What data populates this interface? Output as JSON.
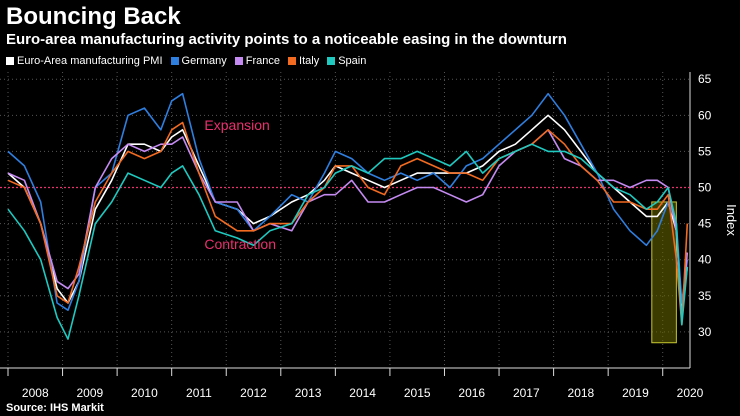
{
  "title": "Bouncing Back",
  "subtitle": "Euro-area manufacturing activity points to a noticeable easing in the downturn",
  "source": "Source: IHS Markit",
  "chart_data": {
    "type": "line",
    "ylabel": "Index",
    "ylim": [
      25,
      66
    ],
    "xlim": [
      2008.0,
      2020.5
    ],
    "yticks": [
      30,
      35,
      40,
      45,
      50,
      55,
      60,
      65
    ],
    "xticks": [
      "2008",
      "2009",
      "2010",
      "2011",
      "2012",
      "2013",
      "2014",
      "2015",
      "2016",
      "2017",
      "2018",
      "2019",
      "2020"
    ],
    "reference_line": 50,
    "annotations": [
      {
        "text": "Expansion",
        "x": 2011.6,
        "y": 58
      },
      {
        "text": "Contraction",
        "x": 2011.6,
        "y": 41.5
      }
    ],
    "highlight_box": {
      "x0": 2019.8,
      "x1": 2020.25,
      "y0": 28.5,
      "y1": 48
    },
    "series": [
      {
        "name": "Euro-Area manufacturing PMI",
        "color": "#ffffff",
        "x": [
          2008.0,
          2008.3,
          2008.6,
          2008.9,
          2009.1,
          2009.3,
          2009.6,
          2009.9,
          2010.2,
          2010.5,
          2010.8,
          2011.0,
          2011.2,
          2011.5,
          2011.8,
          2012.2,
          2012.5,
          2012.8,
          2013.2,
          2013.5,
          2013.8,
          2014.0,
          2014.3,
          2014.6,
          2014.9,
          2015.2,
          2015.5,
          2015.8,
          2016.1,
          2016.4,
          2016.7,
          2017.0,
          2017.3,
          2017.6,
          2017.9,
          2018.2,
          2018.5,
          2018.8,
          2019.1,
          2019.4,
          2019.7,
          2019.9,
          2020.1,
          2020.25,
          2020.35,
          2020.45
        ],
        "values": [
          52,
          50,
          45,
          36,
          34,
          37,
          47,
          51,
          56,
          56,
          55,
          57,
          58,
          53,
          48,
          47,
          45,
          46,
          48,
          49,
          51,
          53,
          52,
          51,
          50,
          51,
          52,
          52,
          52,
          52,
          53,
          55,
          56,
          58,
          60,
          58,
          55,
          52,
          50,
          48,
          46,
          46,
          48,
          44,
          33,
          39
        ]
      },
      {
        "name": "Germany",
        "color": "#2f7fe0",
        "x": [
          2008.0,
          2008.3,
          2008.6,
          2008.9,
          2009.1,
          2009.3,
          2009.6,
          2009.9,
          2010.2,
          2010.5,
          2010.8,
          2011.0,
          2011.2,
          2011.5,
          2011.8,
          2012.2,
          2012.5,
          2012.8,
          2013.2,
          2013.5,
          2013.8,
          2014.0,
          2014.3,
          2014.6,
          2014.9,
          2015.2,
          2015.5,
          2015.8,
          2016.1,
          2016.4,
          2016.7,
          2017.0,
          2017.3,
          2017.6,
          2017.9,
          2018.2,
          2018.5,
          2018.8,
          2019.1,
          2019.4,
          2019.7,
          2019.9,
          2020.1,
          2020.25,
          2020.35,
          2020.45
        ],
        "values": [
          55,
          53,
          48,
          34,
          33,
          37,
          50,
          52,
          60,
          61,
          58,
          62,
          63,
          54,
          48,
          47,
          44,
          46,
          49,
          48,
          52,
          55,
          54,
          52,
          51,
          52,
          51,
          52,
          50,
          53,
          54,
          56,
          58,
          60,
          63,
          60,
          56,
          52,
          47,
          44,
          42,
          44,
          48,
          45,
          34,
          40
        ]
      },
      {
        "name": "France",
        "color": "#c58bf2",
        "x": [
          2008.0,
          2008.3,
          2008.6,
          2008.9,
          2009.1,
          2009.3,
          2009.6,
          2009.9,
          2010.2,
          2010.5,
          2010.8,
          2011.0,
          2011.2,
          2011.5,
          2011.8,
          2012.2,
          2012.5,
          2012.8,
          2013.2,
          2013.5,
          2013.8,
          2014.0,
          2014.3,
          2014.6,
          2014.9,
          2015.2,
          2015.5,
          2015.8,
          2016.1,
          2016.4,
          2016.7,
          2017.0,
          2017.3,
          2017.6,
          2017.9,
          2018.2,
          2018.5,
          2018.8,
          2019.1,
          2019.4,
          2019.7,
          2019.9,
          2020.1,
          2020.25,
          2020.35,
          2020.45
        ],
        "values": [
          52,
          51,
          45,
          37,
          36,
          38,
          50,
          54,
          56,
          55,
          56,
          56,
          57,
          52,
          48,
          48,
          44,
          45,
          44,
          48,
          49,
          49,
          51,
          48,
          48,
          49,
          50,
          50,
          49,
          48,
          49,
          53,
          55,
          56,
          58,
          54,
          53,
          51,
          51,
          50,
          51,
          51,
          50,
          44,
          32,
          41
        ]
      },
      {
        "name": "Italy",
        "color": "#f26b21",
        "x": [
          2008.0,
          2008.3,
          2008.6,
          2008.9,
          2009.1,
          2009.3,
          2009.6,
          2009.9,
          2010.2,
          2010.5,
          2010.8,
          2011.0,
          2011.2,
          2011.5,
          2011.8,
          2012.2,
          2012.5,
          2012.8,
          2013.2,
          2013.5,
          2013.8,
          2014.0,
          2014.3,
          2014.6,
          2014.9,
          2015.2,
          2015.5,
          2015.8,
          2016.1,
          2016.4,
          2016.7,
          2017.0,
          2017.3,
          2017.6,
          2017.9,
          2018.2,
          2018.5,
          2018.8,
          2019.1,
          2019.4,
          2019.7,
          2019.9,
          2020.1,
          2020.25,
          2020.35,
          2020.45
        ],
        "values": [
          51,
          50,
          45,
          35,
          34,
          39,
          48,
          52,
          55,
          54,
          55,
          58,
          59,
          52,
          46,
          44,
          44,
          45,
          45,
          48,
          50,
          53,
          53,
          50,
          49,
          53,
          54,
          53,
          52,
          52,
          51,
          54,
          55,
          56,
          58,
          56,
          53,
          51,
          48,
          48,
          47,
          47,
          49,
          40,
          31,
          45
        ]
      },
      {
        "name": "Spain",
        "color": "#1fc9c0",
        "x": [
          2008.0,
          2008.3,
          2008.6,
          2008.9,
          2009.1,
          2009.3,
          2009.6,
          2009.9,
          2010.2,
          2010.5,
          2010.8,
          2011.0,
          2011.2,
          2011.5,
          2011.8,
          2012.2,
          2012.5,
          2012.8,
          2013.2,
          2013.5,
          2013.8,
          2014.0,
          2014.3,
          2014.6,
          2014.9,
          2015.2,
          2015.5,
          2015.8,
          2016.1,
          2016.4,
          2016.7,
          2017.0,
          2017.3,
          2017.6,
          2017.9,
          2018.2,
          2018.5,
          2018.8,
          2019.1,
          2019.4,
          2019.7,
          2019.9,
          2020.1,
          2020.25,
          2020.35,
          2020.45
        ],
        "values": [
          47,
          44,
          40,
          32,
          29,
          35,
          45,
          48,
          52,
          51,
          50,
          52,
          53,
          49,
          44,
          43,
          42,
          44,
          45,
          49,
          50,
          52,
          53,
          52,
          54,
          54,
          55,
          54,
          53,
          55,
          52,
          54,
          55,
          56,
          55,
          55,
          54,
          52,
          50,
          49,
          47,
          48,
          50,
          45,
          31,
          39
        ]
      }
    ]
  }
}
